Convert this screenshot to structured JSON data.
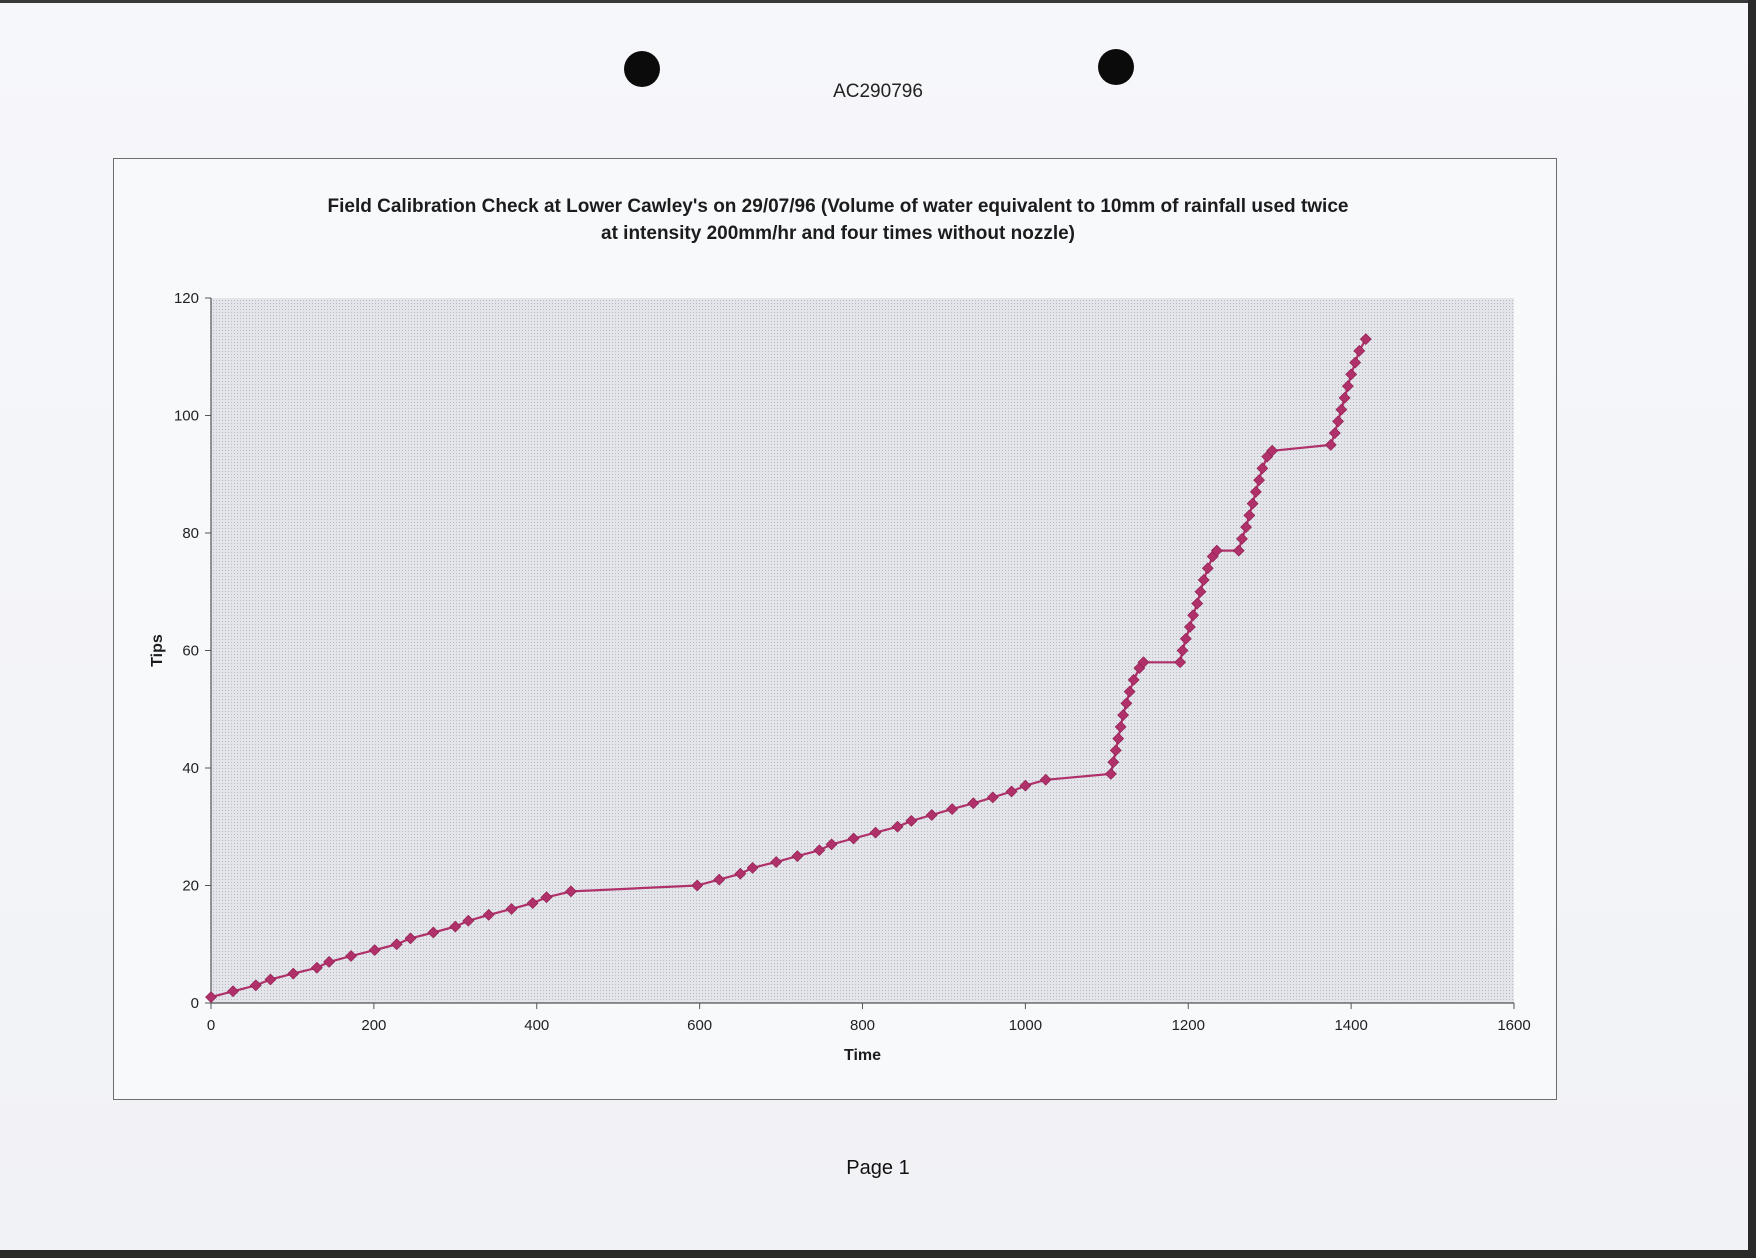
{
  "document": {
    "reference": "AC290796",
    "page": "Page 1"
  },
  "chart_data": {
    "type": "line",
    "title_line1": "Field Calibration Check at Lower Cawley's on 29/07/96 (Volume of water equivalent to 10mm of rainfall used twice",
    "title_line2": "at intensity 200mm/hr and four times without nozzle)",
    "xlabel": "Time",
    "ylabel": "Tips",
    "xlim": [
      0,
      1600
    ],
    "ylim": [
      0,
      120
    ],
    "xticks": [
      0,
      200,
      400,
      600,
      800,
      1000,
      1200,
      1400,
      1600
    ],
    "yticks": [
      0,
      20,
      40,
      60,
      80,
      100,
      120
    ],
    "grid": false,
    "legend": "none",
    "colors": {
      "series": "#b0306a",
      "plot_bg": "#dcdde3",
      "frame": "#6e6e6e"
    },
    "series": [
      {
        "points": [
          [
            0,
            1
          ],
          [
            27,
            2
          ],
          [
            55,
            3
          ],
          [
            73,
            4
          ],
          [
            101,
            5
          ],
          [
            130,
            6
          ],
          [
            145,
            7
          ],
          [
            172,
            8
          ],
          [
            201,
            9
          ],
          [
            228,
            10
          ],
          [
            245,
            11
          ],
          [
            273,
            12
          ],
          [
            300,
            13
          ],
          [
            316,
            14
          ],
          [
            341,
            15
          ],
          [
            369,
            16
          ],
          [
            395,
            17
          ],
          [
            412,
            18
          ],
          [
            442,
            19
          ],
          [
            597,
            20
          ],
          [
            624,
            21
          ],
          [
            650,
            22
          ],
          [
            665,
            23
          ],
          [
            694,
            24
          ],
          [
            720,
            25
          ],
          [
            747,
            26
          ],
          [
            762,
            27
          ],
          [
            789,
            28
          ],
          [
            816,
            29
          ],
          [
            843,
            30
          ],
          [
            860,
            31
          ],
          [
            885,
            32
          ],
          [
            910,
            33
          ],
          [
            936,
            34
          ],
          [
            960,
            35
          ],
          [
            983,
            36
          ],
          [
            1000,
            37
          ],
          [
            1025,
            38
          ],
          [
            1105,
            39
          ],
          [
            1108,
            41
          ],
          [
            1111,
            43
          ],
          [
            1114,
            45
          ],
          [
            1117,
            47
          ],
          [
            1120,
            49
          ],
          [
            1124,
            51
          ],
          [
            1128,
            53
          ],
          [
            1133,
            55
          ],
          [
            1140,
            57
          ],
          [
            1145,
            58
          ],
          [
            1190,
            58
          ],
          [
            1193,
            60
          ],
          [
            1197,
            62
          ],
          [
            1202,
            64
          ],
          [
            1206,
            66
          ],
          [
            1211,
            68
          ],
          [
            1215,
            70
          ],
          [
            1219,
            72
          ],
          [
            1224,
            74
          ],
          [
            1230,
            76
          ],
          [
            1235,
            77
          ],
          [
            1262,
            77
          ],
          [
            1266,
            79
          ],
          [
            1271,
            81
          ],
          [
            1275,
            83
          ],
          [
            1279,
            85
          ],
          [
            1283,
            87
          ],
          [
            1287,
            89
          ],
          [
            1291,
            91
          ],
          [
            1297,
            93
          ],
          [
            1303,
            94
          ],
          [
            1375,
            95
          ],
          [
            1380,
            97
          ],
          [
            1384,
            99
          ],
          [
            1388,
            101
          ],
          [
            1392,
            103
          ],
          [
            1396,
            105
          ],
          [
            1400,
            107
          ],
          [
            1405,
            109
          ],
          [
            1410,
            111
          ],
          [
            1418,
            113
          ]
        ]
      }
    ]
  }
}
